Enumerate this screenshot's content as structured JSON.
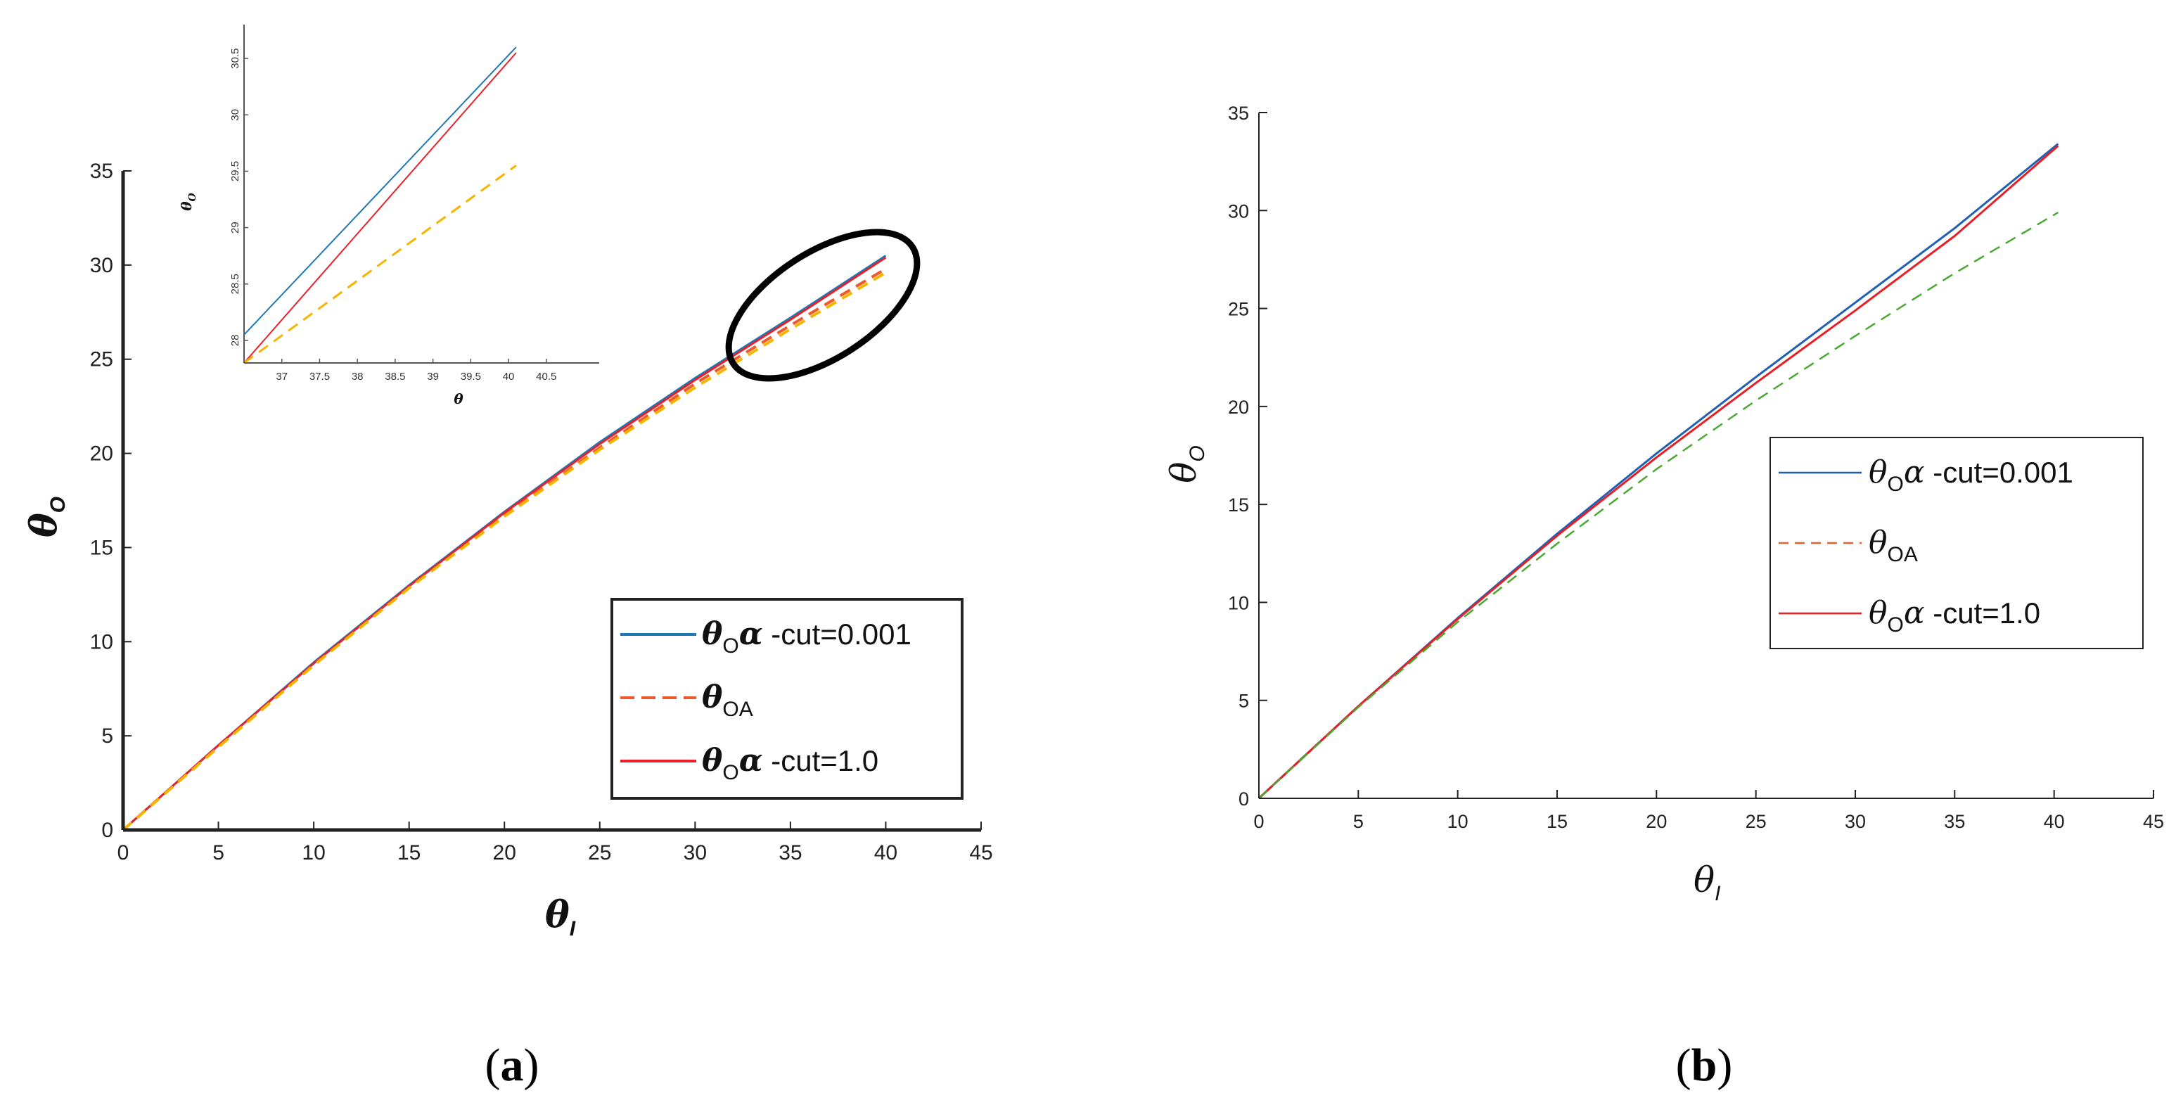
{
  "panel_labels": {
    "a": "a",
    "b": "b"
  },
  "chart_data": [
    {
      "type": "line",
      "panel": "a",
      "xlabel": "θ",
      "xlabel_sub": "I",
      "ylabel": "θ",
      "ylabel_sub": "O",
      "xlim": [
        0,
        45
      ],
      "ylim": [
        0,
        35
      ],
      "xticks": [
        0,
        5,
        10,
        15,
        20,
        25,
        30,
        35,
        40,
        45
      ],
      "yticks": [
        0,
        5,
        10,
        15,
        20,
        25,
        30,
        35
      ],
      "legend_position": "lower-right",
      "series": [
        {
          "name": "θOα -cut=0.001",
          "label_main": "θ",
          "label_sub": "O",
          "label_greek": "α",
          "label_rest": " -cut=0.001",
          "color": "#1f77b4",
          "style": "solid",
          "x": [
            0,
            5,
            10,
            15,
            20,
            25,
            30,
            35,
            40
          ],
          "y": [
            0,
            4.5,
            8.9,
            13.0,
            16.9,
            20.6,
            24.0,
            27.2,
            30.5
          ]
        },
        {
          "name": "θOA",
          "label_main": "θ",
          "label_sub": "OA",
          "label_greek": "",
          "label_rest": "",
          "color": "#f05a28",
          "style": "dashed",
          "x": [
            0,
            5,
            10,
            15,
            20,
            25,
            30,
            35,
            40
          ],
          "y": [
            0,
            4.45,
            8.8,
            12.9,
            16.7,
            20.3,
            23.7,
            26.8,
            29.8
          ]
        },
        {
          "name": "θOα -cut=1.0",
          "label_main": "θ",
          "label_sub": "O",
          "label_greek": "α",
          "label_rest": " -cut=1.0",
          "color": "#e8202a",
          "style": "solid",
          "x": [
            0,
            5,
            10,
            15,
            20,
            25,
            30,
            35,
            40
          ],
          "y": [
            0,
            4.5,
            8.85,
            12.95,
            16.85,
            20.5,
            23.9,
            27.1,
            30.4
          ]
        },
        {
          "name": "yellow dashed",
          "legend": false,
          "color": "#f5b400",
          "style": "dashed",
          "x": [
            0,
            5,
            10,
            15,
            20,
            25,
            30,
            35,
            40
          ],
          "y": [
            0,
            4.4,
            8.75,
            12.85,
            16.65,
            20.2,
            23.5,
            26.6,
            29.6
          ]
        }
      ],
      "inset": {
        "xlabel": "θ",
        "ylabel": "θ",
        "ylabel_sub": "O",
        "xlim": [
          36.5,
          41.2
        ],
        "ylim": [
          27.8,
          30.8
        ],
        "xtick_labels": [
          "37",
          "37.5",
          "38",
          "38.5",
          "39",
          "39.5",
          "40",
          "40.5"
        ],
        "xtick_values": [
          37,
          37.5,
          38,
          38.5,
          39,
          39.5,
          40,
          40.5
        ],
        "ytick_labels": [
          "28",
          "28.5",
          "29",
          "29.5",
          "30",
          "30.5"
        ],
        "ytick_values": [
          28,
          28.5,
          29,
          29.5,
          30,
          30.5
        ],
        "series": [
          {
            "name": "blue",
            "color": "#1f77b4",
            "style": "solid",
            "x": [
              36.5,
              40.1
            ],
            "y": [
              28.05,
              30.6
            ]
          },
          {
            "name": "red",
            "color": "#e8202a",
            "style": "solid",
            "x": [
              36.5,
              40.1
            ],
            "y": [
              27.8,
              30.55
            ]
          },
          {
            "name": "yellow dashed",
            "color": "#f5b400",
            "style": "dashed",
            "x": [
              36.5,
              40.1
            ],
            "y": [
              27.8,
              29.55
            ]
          }
        ]
      }
    },
    {
      "type": "line",
      "panel": "b",
      "xlabel": "θ",
      "xlabel_sub": "I",
      "ylabel": "θ",
      "ylabel_sub": "O",
      "xlim": [
        0,
        45
      ],
      "ylim": [
        0,
        35
      ],
      "xticks": [
        0,
        5,
        10,
        15,
        20,
        25,
        30,
        35,
        40,
        45
      ],
      "yticks": [
        0,
        5,
        10,
        15,
        20,
        25,
        30,
        35
      ],
      "legend_position": "right",
      "series": [
        {
          "name": "θOα -cut=0.001",
          "label_main": "θ",
          "label_sub": "O",
          "label_greek": "α",
          "label_rest": " -cut=0.001",
          "color": "#1f5fb4",
          "style": "solid",
          "x": [
            0,
            5,
            10,
            15,
            20,
            25,
            30,
            35,
            40.2
          ],
          "y": [
            0,
            4.7,
            9.2,
            13.5,
            17.6,
            21.5,
            25.3,
            29.1,
            33.4
          ]
        },
        {
          "name": "θOA",
          "label_main": "θ",
          "label_sub": "OA",
          "label_greek": "",
          "label_rest": "",
          "color": "#e8602a",
          "style": "dashed",
          "legend_only": true,
          "x": [],
          "y": []
        },
        {
          "name": "θOα -cut=1.0",
          "label_main": "θ",
          "label_sub": "O",
          "label_greek": "α",
          "label_rest": " -cut=1.0",
          "color": "#e81e25",
          "style": "solid",
          "x": [
            0,
            5,
            10,
            15,
            20,
            25,
            30,
            35,
            40.2
          ],
          "y": [
            0,
            4.7,
            9.15,
            13.4,
            17.4,
            21.2,
            24.9,
            28.7,
            33.3
          ]
        },
        {
          "name": "green dashed",
          "legend": false,
          "color": "#4aa832",
          "style": "dashed",
          "x": [
            0,
            5,
            10,
            15,
            20,
            25,
            30,
            35,
            40.2
          ],
          "y": [
            0,
            4.65,
            9.0,
            13.0,
            16.8,
            20.3,
            23.6,
            26.8,
            29.9
          ]
        }
      ]
    }
  ]
}
